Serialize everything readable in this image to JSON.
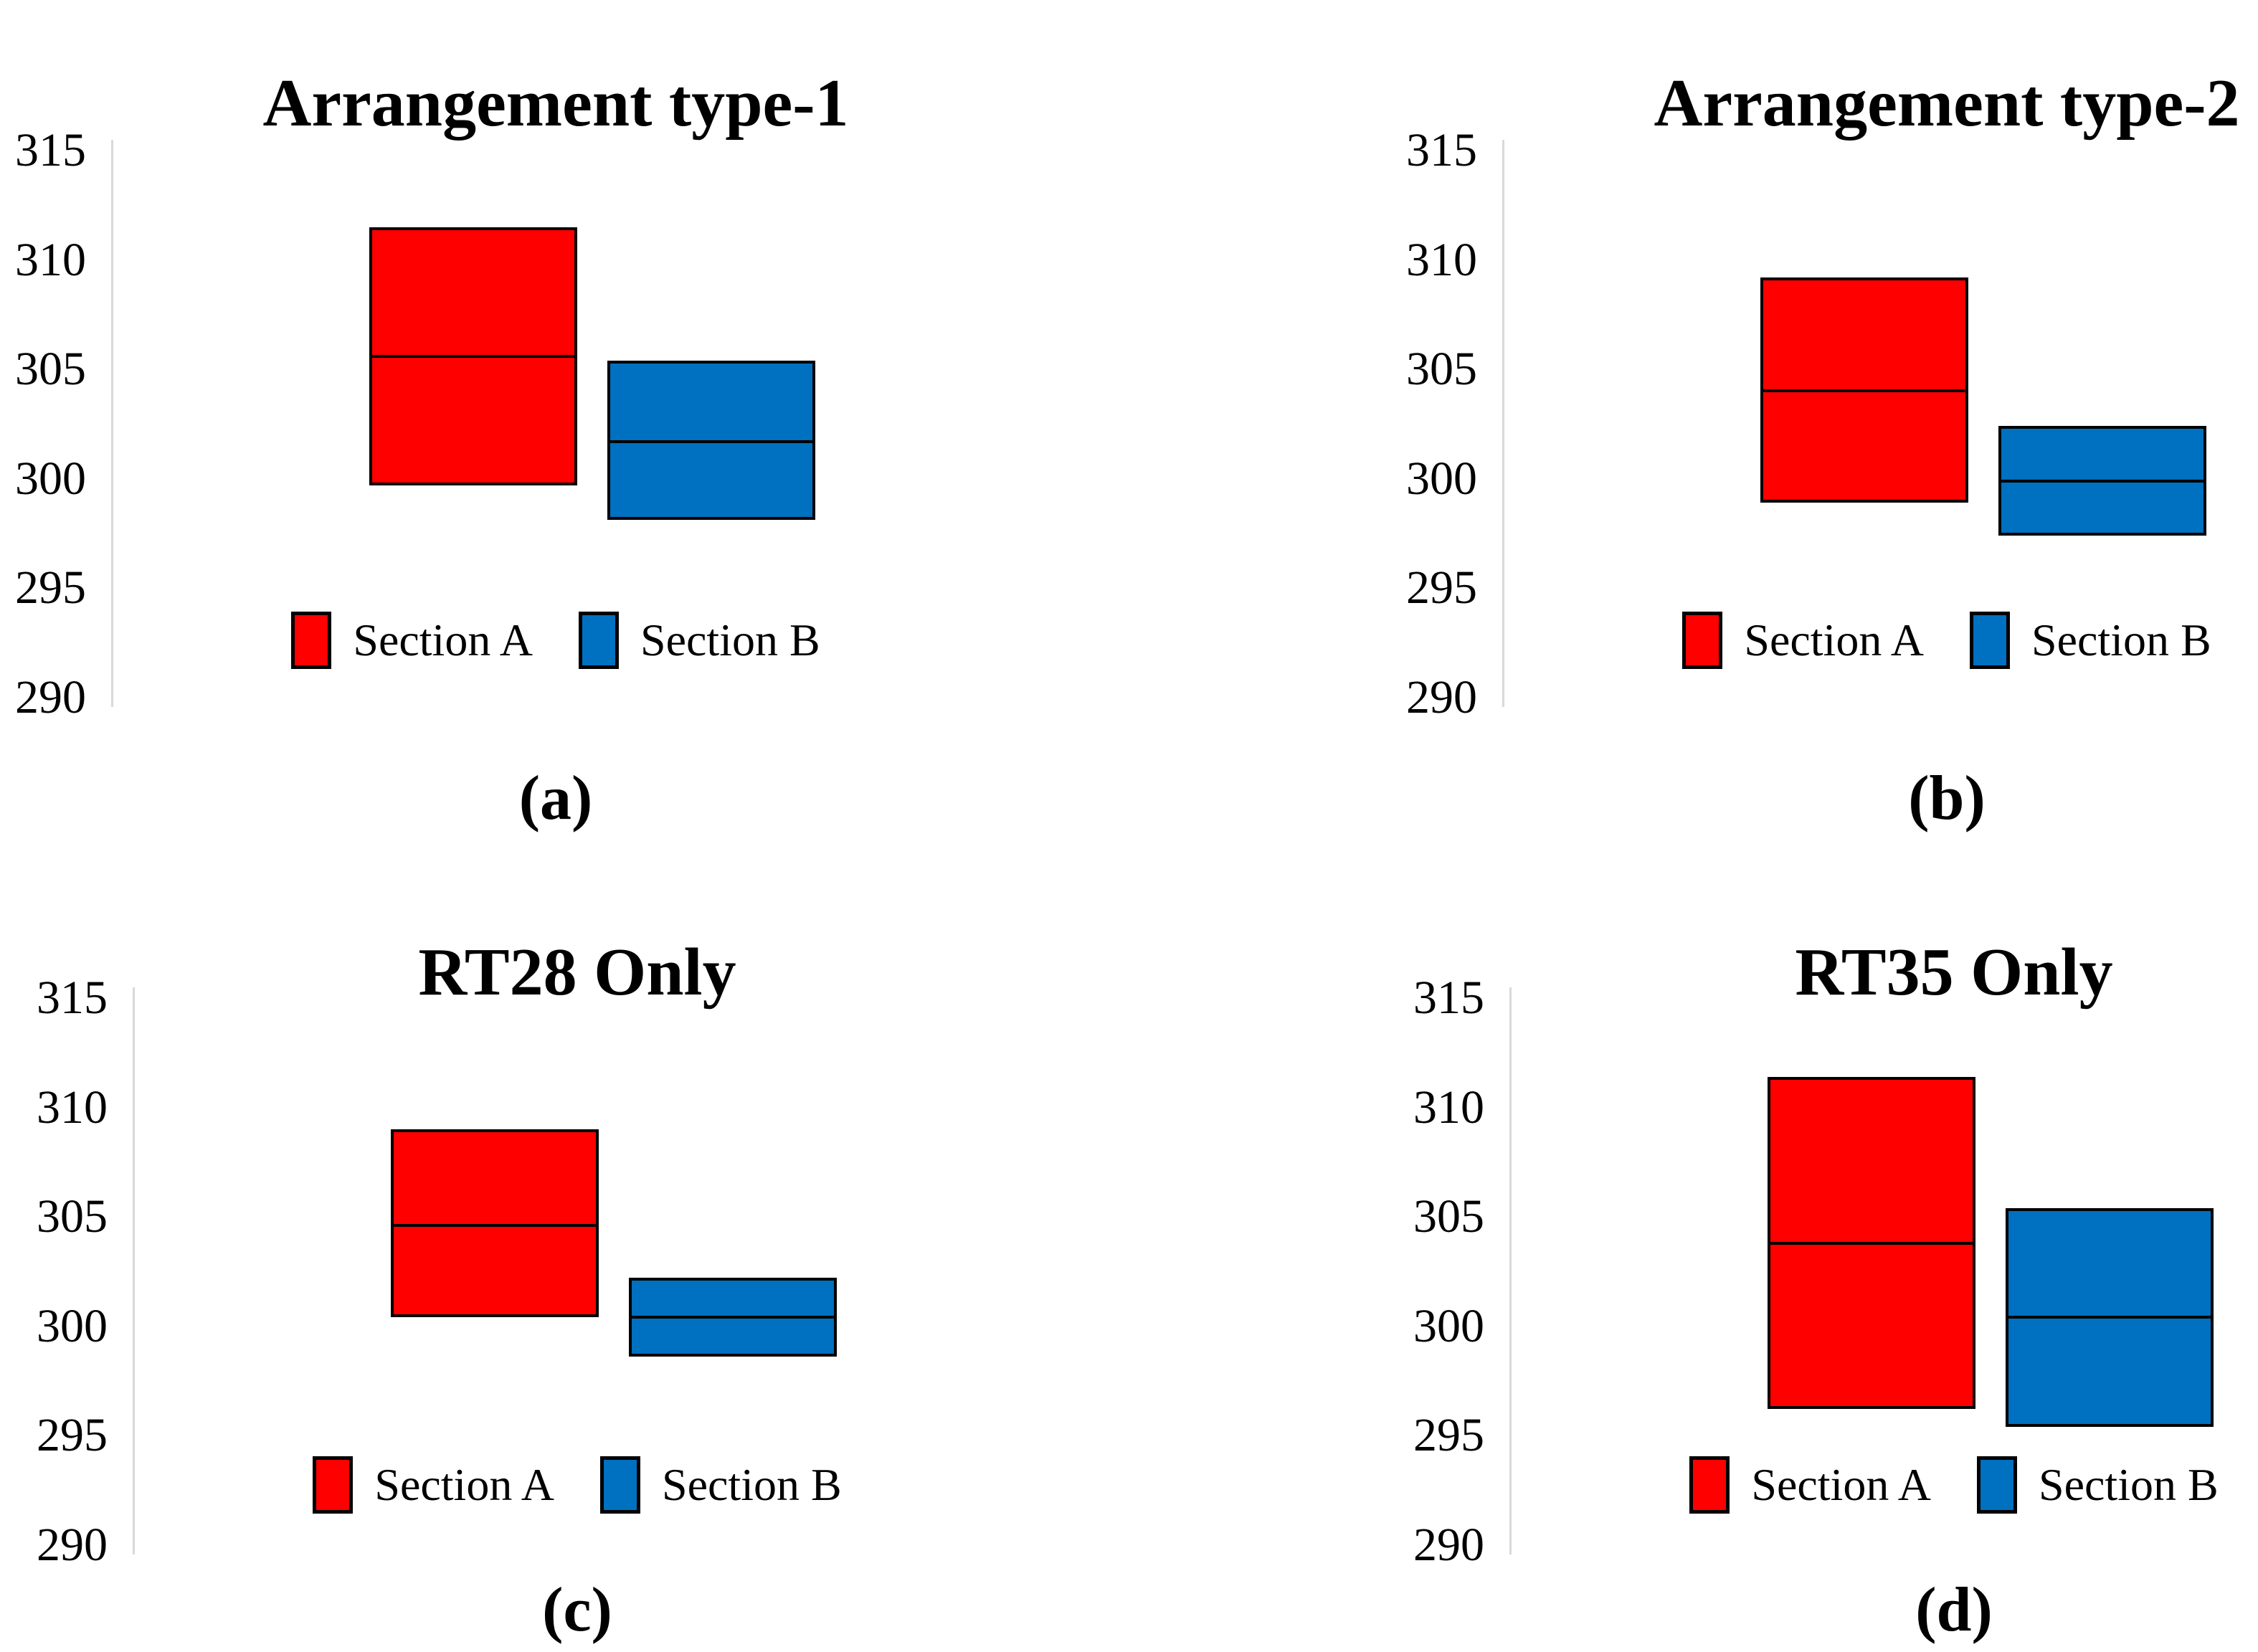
{
  "figure": {
    "background": "#ffffff",
    "panels": [
      "(a)",
      "(b)",
      "(c)",
      "(d)"
    ]
  },
  "colors": {
    "section_a": "#ff0000",
    "section_b": "#0070c0",
    "box_border": "#000000",
    "median_line": "#000000",
    "axis_line": "#d9d9d9",
    "text": "#000000"
  },
  "chart_data": [
    {
      "type": "box",
      "title": "Arrangement type-1",
      "panel_label": "(a)",
      "ylim": [
        290,
        315
      ],
      "yticks": [
        315,
        310,
        305,
        300,
        295,
        290
      ],
      "grid": false,
      "legend_position": "bottom-inside",
      "legend": [
        {
          "label": "Section A",
          "color": "#ff0000"
        },
        {
          "label": "Section B",
          "color": "#0070c0"
        }
      ],
      "series": [
        {
          "name": "Section A",
          "color": "#ff0000",
          "min": 299.7,
          "median": 305.6,
          "max": 311.5
        },
        {
          "name": "Section B",
          "color": "#0070c0",
          "min": 298.1,
          "median": 301.7,
          "max": 305.4
        }
      ]
    },
    {
      "type": "box",
      "title": "Arrangement type-2",
      "panel_label": "(b)",
      "ylim": [
        290,
        315
      ],
      "yticks": [
        315,
        310,
        305,
        300,
        295,
        290
      ],
      "grid": false,
      "legend_position": "bottom-inside",
      "legend": [
        {
          "label": "Section A",
          "color": "#ff0000"
        },
        {
          "label": "Section B",
          "color": "#0070c0"
        }
      ],
      "series": [
        {
          "name": "Section A",
          "color": "#ff0000",
          "min": 298.9,
          "median": 304.0,
          "max": 309.2
        },
        {
          "name": "Section B",
          "color": "#0070c0",
          "min": 297.4,
          "median": 299.9,
          "max": 302.4
        }
      ]
    },
    {
      "type": "box",
      "title": "RT28 Only",
      "panel_label": "(c)",
      "ylim": [
        290,
        315
      ],
      "yticks": [
        315,
        310,
        305,
        300,
        295,
        290
      ],
      "grid": false,
      "legend_position": "bottom-inside",
      "legend": [
        {
          "label": "Section A",
          "color": "#ff0000"
        },
        {
          "label": "Section B",
          "color": "#0070c0"
        }
      ],
      "series": [
        {
          "name": "Section A",
          "color": "#ff0000",
          "min": 300.4,
          "median": 304.6,
          "max": 309.0
        },
        {
          "name": "Section B",
          "color": "#0070c0",
          "min": 298.6,
          "median": 300.4,
          "max": 302.2
        }
      ]
    },
    {
      "type": "box",
      "title": "RT35 Only",
      "panel_label": "(d)",
      "ylim": [
        290,
        315
      ],
      "yticks": [
        315,
        310,
        305,
        300,
        295,
        290
      ],
      "grid": false,
      "legend_position": "bottom-inside",
      "legend": [
        {
          "label": "Section A",
          "color": "#ff0000"
        },
        {
          "label": "Section B",
          "color": "#0070c0"
        }
      ],
      "series": [
        {
          "name": "Section A",
          "color": "#ff0000",
          "min": 296.2,
          "median": 303.8,
          "max": 311.4
        },
        {
          "name": "Section B",
          "color": "#0070c0",
          "min": 295.4,
          "median": 300.4,
          "max": 305.4
        }
      ]
    }
  ]
}
